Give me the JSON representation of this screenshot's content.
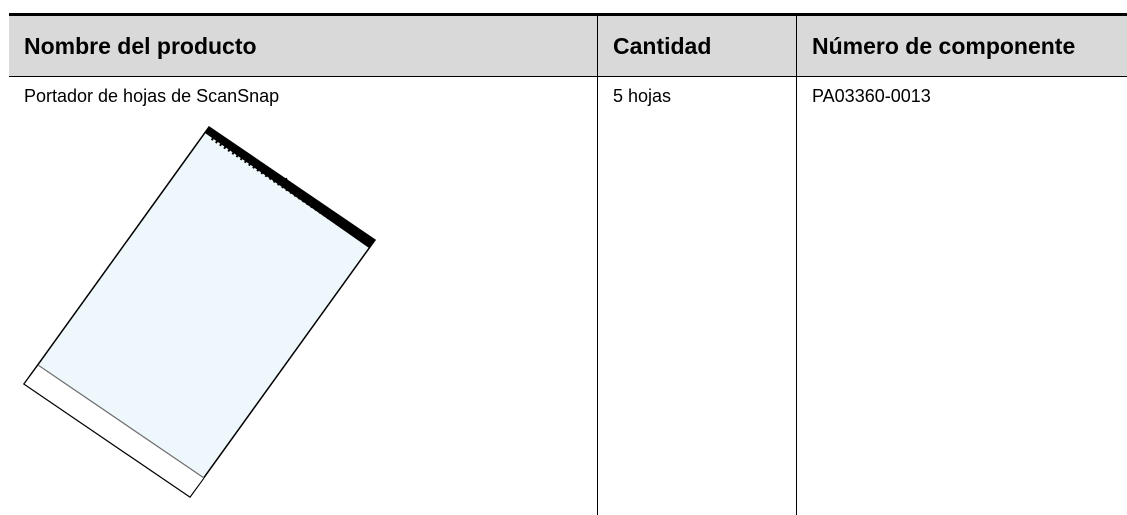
{
  "table": {
    "headers": [
      "Nombre del producto",
      "Cantidad",
      "Número de componente"
    ],
    "rows": [
      [
        "Portador de hojas de ScanSnap",
        "5 hojas",
        "PA03360-0013"
      ]
    ]
  }
}
